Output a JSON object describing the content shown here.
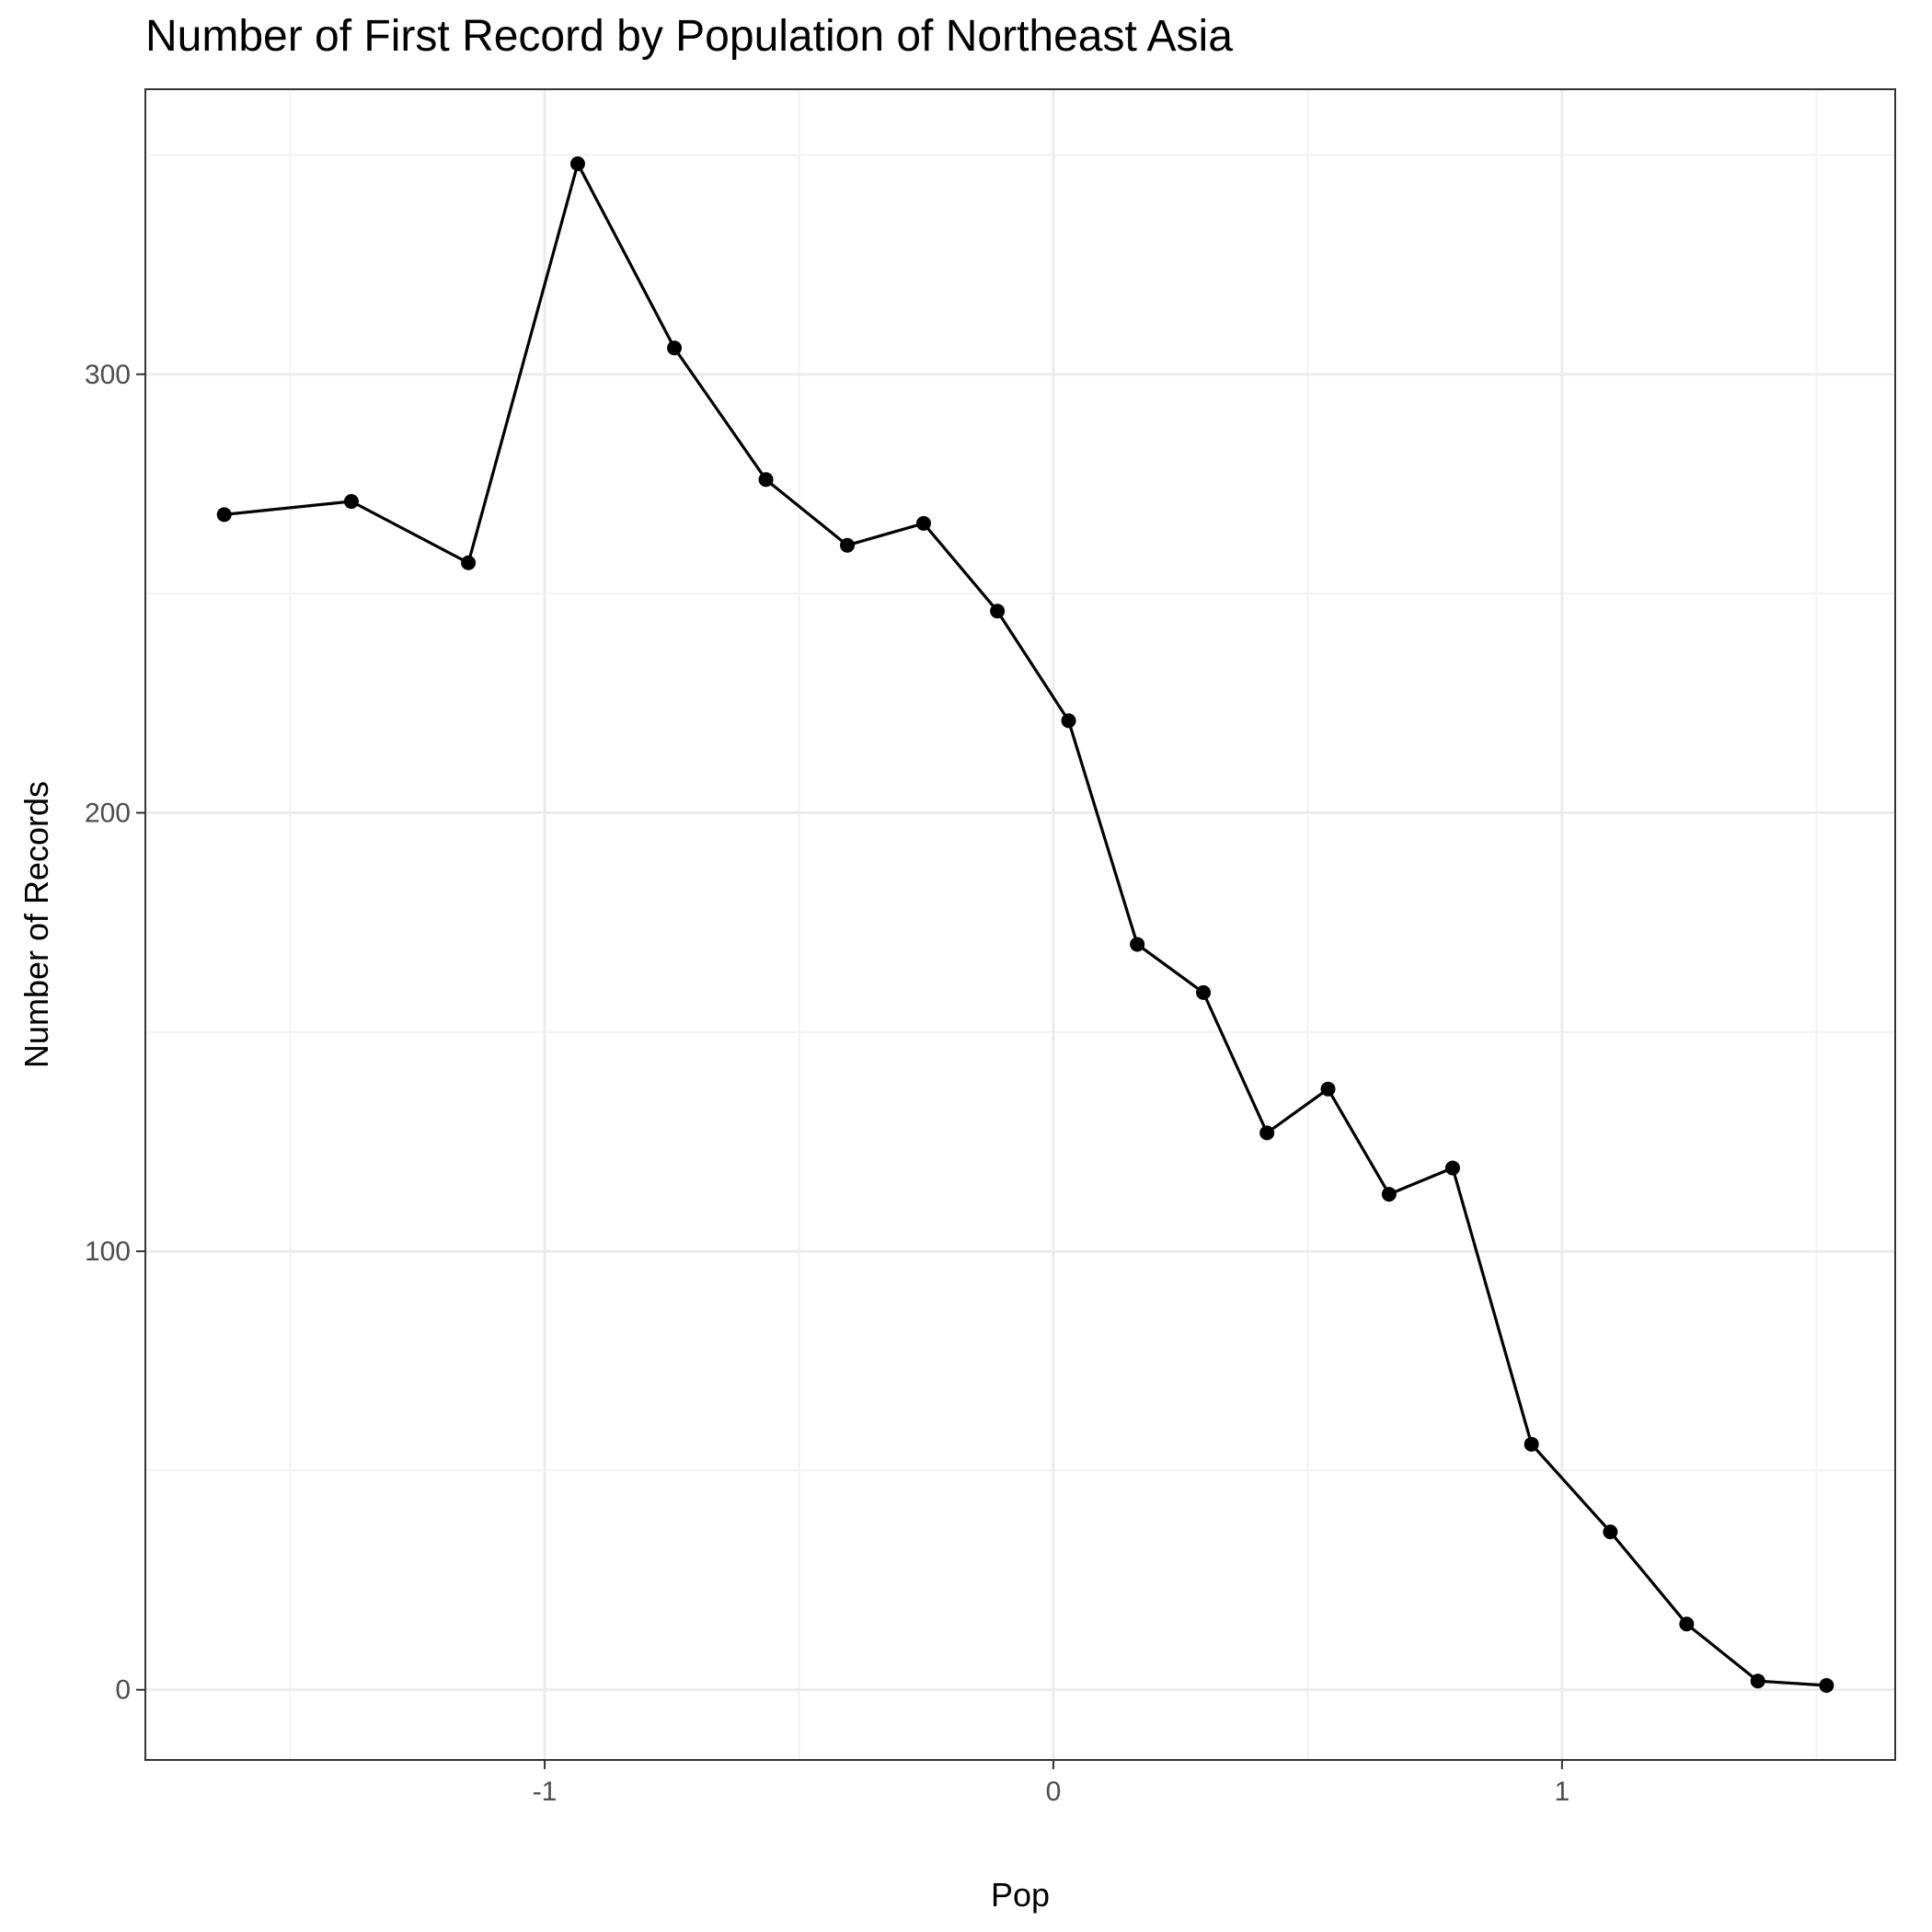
{
  "chart_data": {
    "type": "line",
    "title": "Number of First Record by Population of Northeast Asia",
    "xlabel": "Pop",
    "ylabel": "Number of Records",
    "xlim": [
      -1.785,
      1.655
    ],
    "ylim": [
      -16,
      365
    ],
    "x_ticks": [
      -1,
      0,
      1
    ],
    "x_tick_labels": [
      "-1",
      "0",
      "1"
    ],
    "y_ticks": [
      0,
      100,
      200,
      300
    ],
    "y_tick_labels": [
      "0",
      "100",
      "200",
      "300"
    ],
    "grid": true,
    "legend": "none",
    "line_color": "#000000",
    "point_color": "#000000",
    "series": [
      {
        "x": [
          -1.63,
          -1.38,
          -1.15,
          -0.935,
          -0.745,
          -0.565,
          -0.405,
          -0.255,
          -0.11,
          0.03,
          0.165,
          0.295,
          0.42,
          0.54,
          0.66,
          0.785,
          0.94,
          1.095,
          1.245,
          1.385,
          1.52
        ],
        "y": [
          268,
          271,
          257,
          348,
          306,
          276,
          261,
          266,
          246,
          221,
          170,
          159,
          127,
          137,
          113,
          119,
          56,
          36,
          15,
          2,
          1
        ]
      }
    ]
  }
}
